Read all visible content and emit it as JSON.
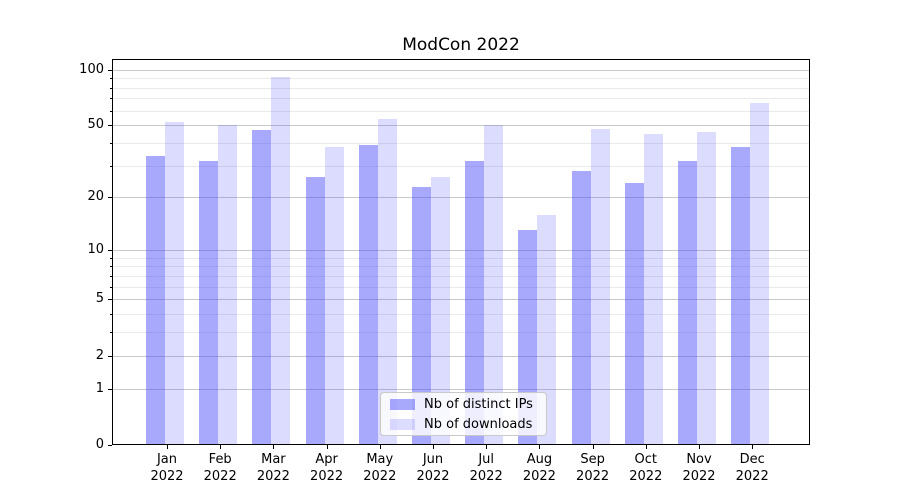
{
  "chart_data": {
    "type": "bar",
    "title": "ModCon 2022",
    "xlabel": "",
    "ylabel": "",
    "categories": [
      "Jan 2022",
      "Feb 2022",
      "Mar 2022",
      "Apr 2022",
      "May 2022",
      "Jun 2022",
      "Jul 2022",
      "Aug 2022",
      "Sep 2022",
      "Oct 2022",
      "Nov 2022",
      "Dec 2022"
    ],
    "series": [
      {
        "name": "Nb of distinct IPs",
        "color": "#4646f8",
        "alpha": 0.47,
        "values": [
          34,
          32,
          47,
          26,
          39,
          23,
          32,
          13,
          28,
          24,
          32,
          38
        ]
      },
      {
        "name": "Nb of downloads",
        "color": "#4646f8",
        "alpha": 0.19,
        "values": [
          52,
          50,
          91,
          38,
          54,
          26,
          50,
          16,
          48,
          45,
          46,
          66
        ]
      }
    ],
    "yscale": "log1p",
    "ylim": [
      0,
      114
    ],
    "yticks": [
      0,
      1,
      2,
      5,
      10,
      20,
      50,
      100
    ],
    "minor_yticks": [
      3,
      4,
      6,
      7,
      8,
      9,
      30,
      40,
      60,
      70,
      80,
      90
    ],
    "grid": true,
    "legend_position": "lower center",
    "colors": {
      "grid_major": "#c9c9c9",
      "grid_minor": "#eaeaea",
      "axis": "#000000",
      "background": "#ffffff"
    }
  }
}
